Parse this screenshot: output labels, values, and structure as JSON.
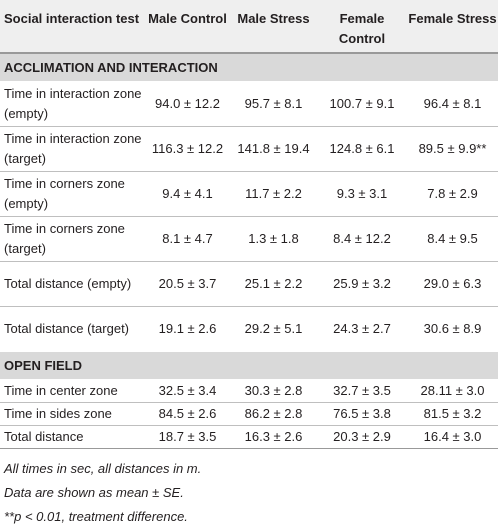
{
  "header": {
    "test_label": "Social interaction test",
    "columns": [
      "Male Control",
      "Male Stress",
      "Female Control",
      "Female Stress"
    ]
  },
  "sections": [
    {
      "title": "ACCLIMATION AND INTERACTION",
      "rows": [
        {
          "label": "Time in interaction zone (empty)",
          "values": [
            "94.0 ± 12.2",
            "95.7 ± 8.1",
            "100.7 ± 9.1",
            "96.4 ± 8.1"
          ]
        },
        {
          "label": "Time in interaction zone (target)",
          "values": [
            "116.3 ± 12.2",
            "141.8 ± 19.4",
            "124.8 ± 6.1",
            "89.5 ± 9.9**"
          ]
        },
        {
          "label": "Time in corners zone (empty)",
          "values": [
            "9.4 ± 4.1",
            "11.7 ± 2.2",
            "9.3 ± 3.1",
            "7.8 ± 2.9"
          ]
        },
        {
          "label": "Time in corners zone (target)",
          "values": [
            "8.1 ± 4.7",
            "1.3 ± 1.8",
            "8.4 ± 12.2",
            "8.4 ± 9.5"
          ]
        },
        {
          "label": "Total distance (empty)",
          "values": [
            "20.5 ± 3.7",
            "25.1 ± 2.2",
            "25.9 ± 3.2",
            "29.0 ± 6.3"
          ]
        },
        {
          "label": "Total distance (target)",
          "values": [
            "19.1 ± 2.6",
            "29.2 ± 5.1",
            "24.3 ± 2.7",
            "30.6 ± 8.9"
          ]
        }
      ]
    },
    {
      "title": "OPEN FIELD",
      "rows": [
        {
          "label": "Time in center zone",
          "values": [
            "32.5 ± 3.4",
            "30.3 ± 2.8",
            "32.7 ± 3.5",
            "28.11 ± 3.0"
          ]
        },
        {
          "label": "Time in sides zone",
          "values": [
            "84.5 ± 2.6",
            "86.2 ± 2.8",
            "76.5 ± 3.8",
            "81.5 ± 3.2"
          ]
        },
        {
          "label": "Total distance",
          "values": [
            "18.7 ± 3.5",
            "16.3 ± 2.6",
            "20.3 ± 2.9",
            "16.4 ± 3.0"
          ]
        }
      ]
    }
  ],
  "footnotes": [
    "All times in sec, all distances in m.",
    "Data are shown as mean ± SE.",
    "**p < 0.01, treatment difference."
  ]
}
